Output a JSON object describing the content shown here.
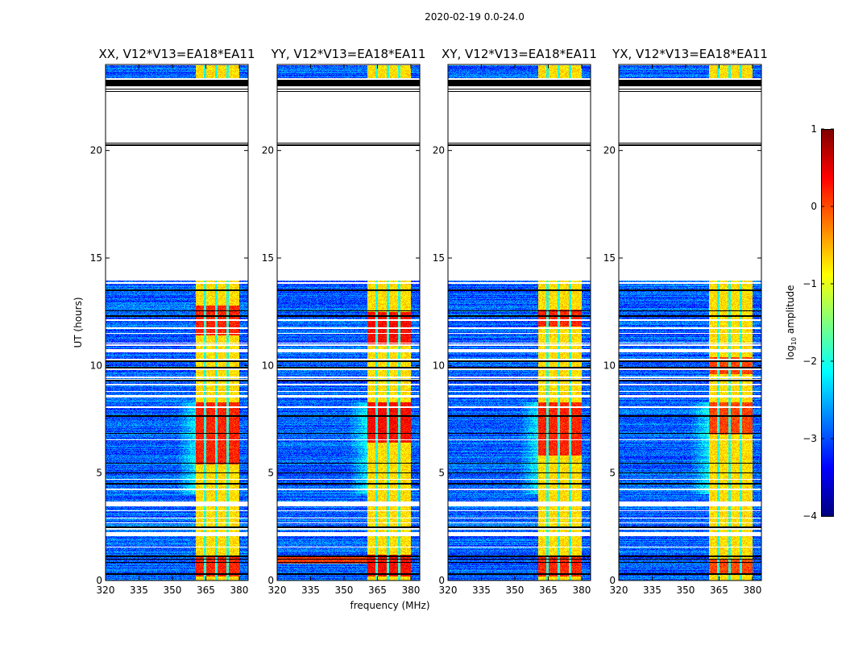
{
  "suptitle": "2020-02-19 0.0-24.0",
  "xlabel": "frequency (MHz)",
  "ylabel": "UT (hours)",
  "colorbar": {
    "label_prefix": "log",
    "label_sub": "10",
    "label_suffix": " amplitude",
    "ticks": [
      "1",
      "0",
      "−1",
      "−2",
      "−3",
      "−4"
    ],
    "tick_values": [
      1,
      0,
      -1,
      -2,
      -3,
      -4
    ],
    "range": [
      -4,
      1
    ],
    "colormap": "jet"
  },
  "chart_data": {
    "type": "heatmap",
    "x_range": [
      320,
      384
    ],
    "y_range": [
      0,
      24
    ],
    "x_ticks": [
      320,
      335,
      350,
      365,
      380
    ],
    "x_tick_labels": [
      "320",
      "335",
      "350",
      "365",
      "380"
    ],
    "y_ticks": [
      0,
      5,
      10,
      15,
      20
    ],
    "y_tick_labels": [
      "0",
      "5",
      "10",
      "15",
      "20"
    ],
    "value_label": "log10 amplitude",
    "background_level": -2.9,
    "band": {
      "start_mhz": 360.5,
      "end_mhz": 380,
      "level": -0.7,
      "dips_mhz": [
        364.7,
        369.7,
        374.7
      ]
    },
    "data_time_ranges": [
      [
        0,
        2.05
      ],
      [
        2.25,
        3.45
      ],
      [
        3.67,
        8.5
      ],
      [
        8.62,
        10.6
      ],
      [
        10.78,
        13.95
      ],
      [
        23.35,
        23.95
      ]
    ],
    "black_lines_hours": [
      0.3,
      0.85,
      1.0,
      1.12,
      2.45,
      2.5,
      4.5,
      5.0,
      5.45,
      6.85,
      7.65,
      9.3,
      9.9,
      10.2,
      12.3,
      12.55,
      13.5,
      20.25,
      20.35,
      22.75,
      22.85
    ],
    "black_band_hours": [
      23.0,
      23.3
    ],
    "panels": [
      {
        "title": "XX, V12*V13=EA18*EA11",
        "hot_ranges": [
          [
            0.2,
            1.1
          ],
          [
            5.4,
            8.3
          ],
          [
            11.4,
            12.8
          ]
        ],
        "hot_level": 0.2
      },
      {
        "title": "YY, V12*V13=EA18*EA11",
        "hot_ranges": [
          [
            0.2,
            1.2
          ],
          [
            6.4,
            8.3
          ],
          [
            11.0,
            12.5
          ]
        ],
        "hot_level": 0.35
      },
      {
        "title": "XY, V12*V13=EA18*EA11",
        "hot_ranges": [
          [
            0.2,
            1.1
          ],
          [
            5.8,
            8.3
          ],
          [
            11.8,
            12.6
          ]
        ],
        "hot_level": 0.2
      },
      {
        "title": "YX, V12*V13=EA18*EA11",
        "hot_ranges": [
          [
            0.3,
            1.0
          ],
          [
            6.8,
            8.3
          ],
          [
            9.6,
            10.4
          ]
        ],
        "hot_level": 0.05
      }
    ]
  }
}
